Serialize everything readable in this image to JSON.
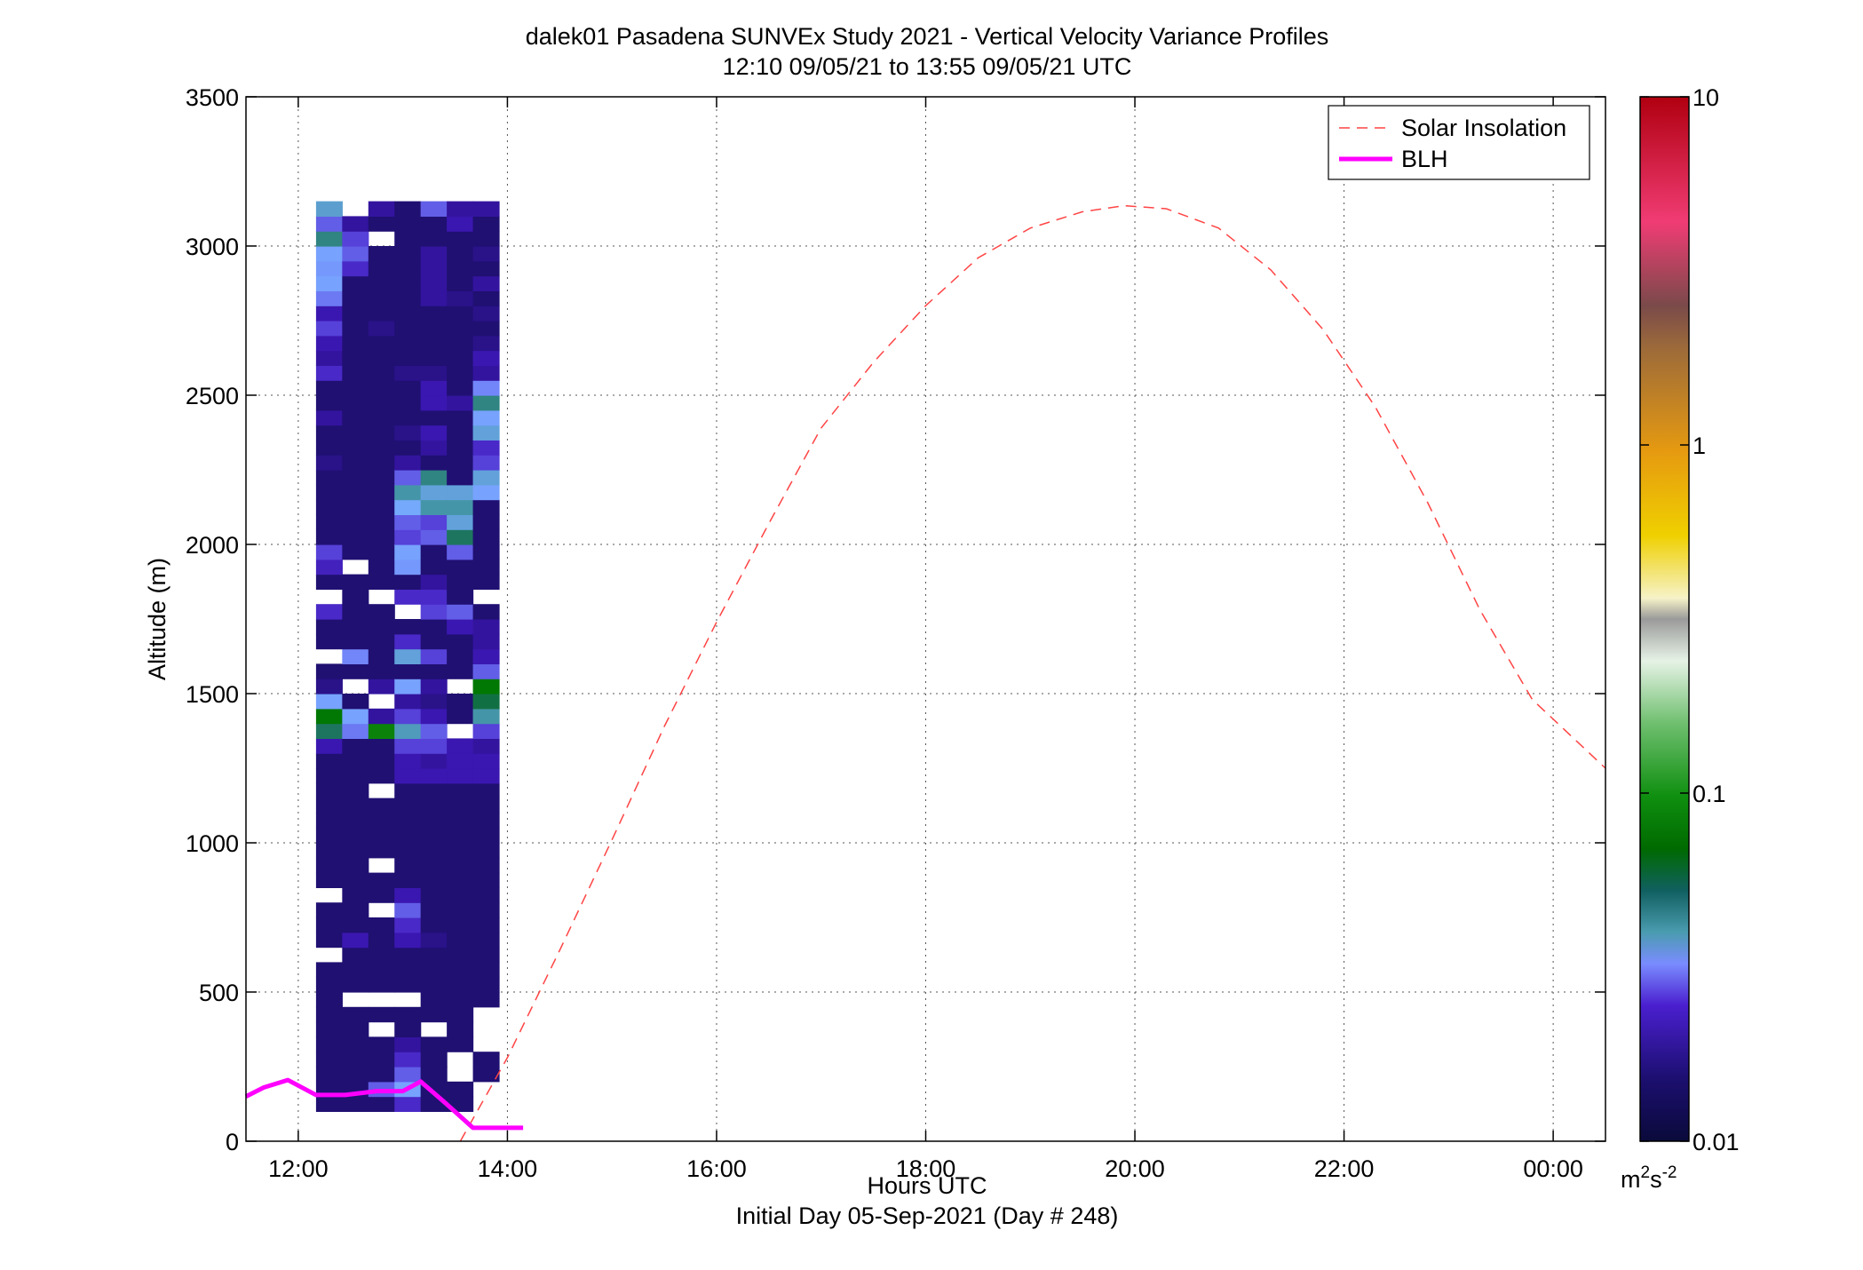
{
  "chart_data": {
    "type": "heatmap",
    "title_line1": "dalek01 Pasadena SUNVEx Study 2021 - Vertical Velocity Variance Profiles",
    "title_line2": "12:10 09/05/21 to 13:55 09/05/21  UTC",
    "xlabel": "Hours UTC",
    "xlabel2": "Initial Day 05-Sep-2021 (Day # 248)",
    "ylabel": "Altitude (m)",
    "xlim_hours": [
      11.5,
      24.5
    ],
    "ylim": [
      0,
      3500
    ],
    "grid": true,
    "x_ticks": [
      {
        "hour": 12,
        "label": "12:00"
      },
      {
        "hour": 14,
        "label": "14:00"
      },
      {
        "hour": 16,
        "label": "16:00"
      },
      {
        "hour": 18,
        "label": "18:00"
      },
      {
        "hour": 20,
        "label": "20:00"
      },
      {
        "hour": 22,
        "label": "22:00"
      },
      {
        "hour": 24,
        "label": "00:00"
      }
    ],
    "y_ticks": [
      0,
      500,
      1000,
      1500,
      2000,
      2500,
      3000,
      3500
    ],
    "legend": {
      "position": "top-right",
      "entries": [
        {
          "label": "Solar Insolation",
          "style": "dashed",
          "color": "#ff4444"
        },
        {
          "label": "BLH",
          "style": "solid",
          "color": "#ff00ff"
        }
      ]
    },
    "colorbar": {
      "scale": "log",
      "range": [
        0.01,
        10
      ],
      "tick_labels": [
        "0.01",
        "0.1",
        "1",
        "10"
      ],
      "unit_base": "m",
      "unit_exp1": "2",
      "unit_mid": "s",
      "unit_exp2": "-2"
    },
    "series": [
      {
        "name": "Solar Insolation",
        "color": "#ff4444",
        "x_hours": [
          13.55,
          14,
          14.5,
          15,
          15.5,
          16,
          16.5,
          17,
          17.5,
          18,
          18.5,
          19,
          19.5,
          19.9,
          20.3,
          20.8,
          21.3,
          21.8,
          22.3,
          22.8,
          23.3,
          23.8,
          24.5
        ],
        "y": [
          0,
          280,
          640,
          1010,
          1390,
          1740,
          2070,
          2390,
          2610,
          2800,
          2960,
          3060,
          3115,
          3135,
          3125,
          3060,
          2920,
          2720,
          2460,
          2140,
          1780,
          1480,
          1250
        ]
      },
      {
        "name": "BLH",
        "color": "#ff00ff",
        "x_hours": [
          11.5,
          11.67,
          11.9,
          12.17,
          12.45,
          12.75,
          13.0,
          13.17,
          13.4,
          13.67,
          13.9,
          14.15
        ],
        "y": [
          150,
          180,
          205,
          155,
          155,
          168,
          168,
          200,
          130,
          45,
          45,
          45
        ]
      }
    ],
    "heatmap": {
      "time_start_hour": 12.17,
      "bin_hours": 0.25,
      "z_start": 100,
      "z_step": 50,
      "columns": [
        {
          "values": [
            0.013,
            0.013,
            0.013,
            0.013,
            0.013,
            0.013,
            0.013,
            0.013,
            0.013,
            0.013,
            null,
            0.013,
            0.013,
            0.013,
            null,
            0.013,
            0.013,
            0.013,
            0.013,
            0.013,
            0.013,
            0.013,
            0.013,
            0.013,
            0.016,
            0.05,
            0.07,
            0.03,
            0.014,
            0.013,
            null,
            0.013,
            0.013,
            0.018,
            null,
            0.013,
            0.017,
            0.02,
            0.013,
            0.013,
            0.013,
            0.013,
            0.013,
            0.014,
            0.013,
            0.013,
            0.015,
            0.013,
            0.013,
            0.018,
            0.015,
            0.016,
            0.02,
            0.016,
            0.024,
            0.03,
            0.028,
            0.03,
            0.045,
            0.022,
            0.036
          ]
        },
        {
          "values": [
            0.013,
            0.013,
            0.013,
            0.013,
            0.013,
            0.013,
            0.013,
            null,
            0.013,
            0.013,
            0.013,
            0.016,
            0.013,
            0.013,
            0.013,
            0.013,
            0.013,
            0.013,
            0.013,
            0.013,
            0.013,
            0.013,
            0.013,
            0.013,
            0.013,
            0.024,
            0.03,
            0.013,
            null,
            0.013,
            0.025,
            0.013,
            0.013,
            0.013,
            0.013,
            0.013,
            null,
            0.013,
            0.013,
            0.013,
            0.013,
            0.013,
            0.013,
            0.013,
            0.013,
            0.013,
            0.013,
            0.013,
            0.013,
            0.013,
            0.013,
            0.013,
            0.013,
            0.013,
            0.013,
            0.013,
            0.018,
            0.022,
            0.02,
            0.015,
            null
          ]
        },
        {
          "values": [
            0.013,
            0.022,
            0.013,
            0.013,
            0.013,
            null,
            0.013,
            null,
            0.013,
            0.013,
            0.013,
            0.013,
            0.013,
            null,
            0.013,
            0.013,
            null,
            0.013,
            0.013,
            0.013,
            0.013,
            null,
            0.013,
            0.013,
            0.013,
            0.08,
            0.015,
            null,
            0.015,
            0.013,
            0.013,
            0.013,
            0.013,
            0.013,
            null,
            0.013,
            0.013,
            0.013,
            0.013,
            0.013,
            0.013,
            0.013,
            0.013,
            0.013,
            0.013,
            0.013,
            0.013,
            0.013,
            0.013,
            0.013,
            0.013,
            0.013,
            0.014,
            0.013,
            0.013,
            0.013,
            0.013,
            0.013,
            null,
            0.013,
            0.015
          ]
        },
        {
          "values": [
            0.018,
            0.03,
            0.022,
            0.018,
            0.015,
            0.013,
            0.013,
            null,
            0.013,
            0.013,
            0.013,
            0.016,
            0.018,
            0.022,
            0.016,
            0.013,
            0.013,
            0.013,
            0.013,
            0.013,
            0.013,
            0.013,
            0.016,
            0.016,
            0.02,
            0.038,
            0.02,
            0.015,
            0.03,
            0.013,
            0.035,
            0.018,
            0.013,
            null,
            0.018,
            0.013,
            0.028,
            0.03,
            0.02,
            0.022,
            0.032,
            0.04,
            0.022,
            0.015,
            0.013,
            0.014,
            0.013,
            0.013,
            0.013,
            0.014,
            0.013,
            0.013,
            0.013,
            0.013,
            0.013,
            0.013,
            0.013,
            0.013,
            0.013,
            0.013,
            0.013
          ]
        },
        {
          "values": [
            0.013,
            0.013,
            0.013,
            0.013,
            0.013,
            null,
            0.013,
            0.013,
            0.013,
            0.013,
            0.013,
            0.014,
            0.013,
            0.013,
            0.013,
            0.013,
            0.013,
            0.013,
            0.013,
            0.013,
            0.013,
            0.013,
            0.016,
            0.015,
            0.02,
            0.022,
            0.016,
            0.014,
            0.015,
            0.013,
            0.02,
            0.013,
            0.013,
            0.02,
            0.018,
            0.015,
            0.013,
            0.013,
            0.022,
            0.02,
            0.04,
            0.035,
            0.045,
            0.013,
            0.015,
            0.016,
            0.013,
            0.016,
            0.016,
            0.014,
            0.013,
            0.013,
            0.013,
            0.013,
            0.015,
            0.015,
            0.015,
            0.015,
            0.013,
            0.013,
            0.022
          ]
        },
        {
          "values": [
            0.013,
            0.013,
            null,
            null,
            0.013,
            0.013,
            0.013,
            0.013,
            0.013,
            0.013,
            0.013,
            0.013,
            0.013,
            0.013,
            0.013,
            0.013,
            0.013,
            0.013,
            0.013,
            0.013,
            0.013,
            0.013,
            0.016,
            0.016,
            0.016,
            null,
            0.013,
            0.013,
            null,
            0.013,
            0.013,
            0.013,
            0.016,
            0.022,
            0.013,
            0.013,
            0.013,
            0.022,
            0.05,
            0.035,
            0.04,
            0.035,
            0.013,
            0.013,
            0.013,
            0.013,
            0.013,
            0.015,
            0.013,
            0.013,
            0.013,
            0.013,
            0.013,
            0.013,
            0.014,
            0.013,
            0.013,
            0.013,
            0.013,
            0.016,
            0.015
          ]
        },
        {
          "values": [
            null,
            null,
            0.013,
            0.013,
            null,
            null,
            null,
            0.013,
            0.013,
            0.013,
            0.013,
            0.013,
            0.013,
            0.013,
            0.013,
            0.013,
            0.013,
            0.013,
            0.013,
            0.013,
            0.013,
            0.013,
            0.016,
            0.016,
            0.015,
            0.02,
            0.04,
            0.055,
            0.07,
            0.022,
            0.016,
            0.015,
            0.015,
            0.013,
            null,
            0.013,
            0.013,
            0.013,
            0.013,
            0.013,
            0.013,
            0.03,
            0.035,
            0.02,
            0.018,
            0.035,
            0.03,
            0.045,
            0.025,
            0.015,
            0.016,
            0.014,
            0.013,
            0.014,
            0.013,
            0.015,
            0.013,
            0.014,
            0.013,
            0.013,
            0.015
          ]
        }
      ]
    }
  }
}
